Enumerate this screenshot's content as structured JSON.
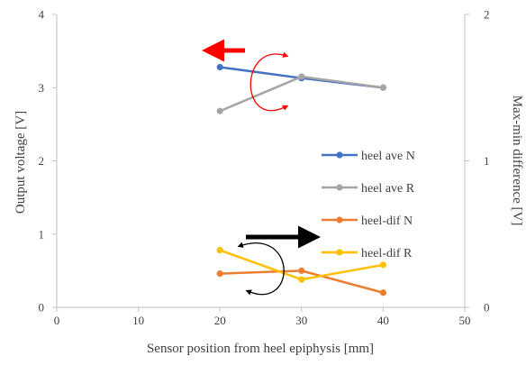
{
  "chart_data": {
    "type": "line",
    "x": [
      20,
      30,
      40
    ],
    "xlabel": "Sensor position from heel epiphysis [mm]",
    "ylabel": "Output voltage [V]",
    "y2label": "Max-min difference [V]",
    "xlim": [
      0,
      50
    ],
    "ylim": [
      0,
      4
    ],
    "y2lim": [
      0,
      2
    ],
    "x_ticks": [
      "0",
      "10",
      "20",
      "30",
      "40",
      "50"
    ],
    "y_ticks": [
      "0",
      "1",
      "2",
      "3",
      "4"
    ],
    "y2_ticks": [
      "0",
      "1",
      "2"
    ],
    "grid": false,
    "legend_position": "right",
    "series": [
      {
        "name": "heel ave N",
        "axis": "left",
        "values": [
          3.28,
          3.13,
          3.0
        ],
        "color": "#4472C4"
      },
      {
        "name": "heel ave R",
        "axis": "left",
        "values": [
          2.68,
          3.15,
          3.0
        ],
        "color": "#A5A5A5"
      },
      {
        "name": "heel-dif N",
        "axis": "right",
        "values": [
          0.23,
          0.25,
          0.1
        ],
        "color": "#ED7D31"
      },
      {
        "name": "heel-dif R",
        "axis": "right",
        "values": [
          0.39,
          0.19,
          0.29
        ],
        "color": "#FFC000"
      }
    ],
    "annotations": [
      {
        "kind": "arrow-left",
        "color": "#FF0000",
        "meaning": "left axis"
      },
      {
        "kind": "curved-double-arrow",
        "color": "#FF0000"
      },
      {
        "kind": "arrow-right",
        "color": "#000000",
        "meaning": "right axis"
      },
      {
        "kind": "curved-double-arrow",
        "color": "#000000"
      }
    ]
  }
}
